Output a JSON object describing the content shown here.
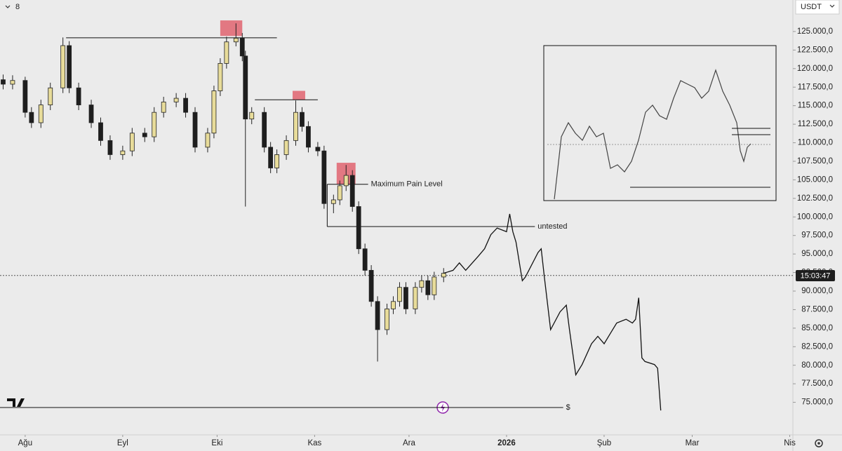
{
  "header": {
    "interval": "8",
    "currency": "USDT",
    "clock": "15:03:47"
  },
  "chart_data": {
    "type": "candlestick",
    "xlim": [
      -8,
      244
    ],
    "ylim": [
      70800,
      129250
    ],
    "xticks": [
      {
        "value": 0,
        "label": "Ağu"
      },
      {
        "value": 31,
        "label": "Eyl"
      },
      {
        "value": 61,
        "label": "Eki"
      },
      {
        "value": 92,
        "label": "Kas"
      },
      {
        "value": 122,
        "label": "Ara"
      },
      {
        "value": 153,
        "label": "2026"
      },
      {
        "value": 184,
        "label": "Şub"
      },
      {
        "value": 212,
        "label": "Mar"
      },
      {
        "value": 243,
        "label": "Nis"
      }
    ],
    "yticks": [
      {
        "value": 75000,
        "label": "75.000,0"
      },
      {
        "value": 77500,
        "label": "77.500,0"
      },
      {
        "value": 80000,
        "label": "80.000,0"
      },
      {
        "value": 82500,
        "label": "82.500,0"
      },
      {
        "value": 85000,
        "label": "85.000,0"
      },
      {
        "value": 87500,
        "label": "87.500,0"
      },
      {
        "value": 90000,
        "label": "90.000,0"
      },
      {
        "value": 92500,
        "label": "92.500,0"
      },
      {
        "value": 95000,
        "label": "95.000,0"
      },
      {
        "value": 97500,
        "label": "97.500,0"
      },
      {
        "value": 100000,
        "label": "100.000,0"
      },
      {
        "value": 102500,
        "label": "102.500,0"
      },
      {
        "value": 105000,
        "label": "105.000,0"
      },
      {
        "value": 107500,
        "label": "107.500,0"
      },
      {
        "value": 110000,
        "label": "110.000,0"
      },
      {
        "value": 112500,
        "label": "112.500,0"
      },
      {
        "value": 115000,
        "label": "115.000,0"
      },
      {
        "value": 117500,
        "label": "117.500,0"
      },
      {
        "value": 120000,
        "label": "120.000,0"
      },
      {
        "value": 122500,
        "label": "122.500,0"
      },
      {
        "value": 125000,
        "label": "125.000,0"
      }
    ],
    "up_color": "#e8dc9a",
    "down_color": "#1e1e1e",
    "x": [
      -7,
      -4,
      0,
      2,
      5,
      8,
      12,
      14,
      17,
      21,
      24,
      27,
      31,
      34,
      38,
      41,
      44,
      48,
      51,
      54,
      58,
      60,
      62,
      64,
      67,
      69,
      70,
      72,
      76,
      78,
      80,
      83,
      86,
      88,
      90,
      93,
      95,
      98,
      100,
      102,
      104,
      106,
      108,
      110,
      112,
      115,
      117,
      119,
      121,
      124,
      126,
      128,
      130,
      133
    ],
    "open": [
      118500,
      117900,
      118400,
      114100,
      112700,
      115100,
      117400,
      123100,
      117400,
      115100,
      112700,
      110300,
      108400,
      108900,
      111300,
      110800,
      114100,
      115500,
      116000,
      114100,
      109400,
      111300,
      117000,
      120700,
      123600,
      124100,
      121700,
      113200,
      114100,
      109400,
      106600,
      108400,
      110300,
      114100,
      112200,
      109400,
      108900,
      101800,
      102300,
      104200,
      105600,
      101400,
      95700,
      92800,
      88600,
      84800,
      87600,
      88600,
      90500,
      87600,
      90500,
      91400,
      89500,
      91900
    ],
    "high": [
      119200,
      119100,
      118900,
      114800,
      115800,
      118100,
      124200,
      123700,
      118100,
      115800,
      113400,
      111000,
      109600,
      112000,
      112000,
      114800,
      116200,
      116700,
      116700,
      114800,
      112000,
      117700,
      121400,
      124300,
      126100,
      124800,
      122400,
      114800,
      114800,
      110100,
      109100,
      111000,
      115700,
      114800,
      112900,
      110100,
      109600,
      103000,
      104900,
      107000,
      106300,
      102100,
      96400,
      93500,
      89300,
      88300,
      89300,
      91200,
      91200,
      91200,
      92100,
      92100,
      92600,
      93100
    ],
    "low": [
      117200,
      117200,
      113400,
      112000,
      112000,
      114400,
      116700,
      116700,
      114400,
      112000,
      109600,
      107700,
      107700,
      108200,
      110100,
      110100,
      113400,
      114800,
      113400,
      108700,
      108700,
      110600,
      116300,
      120000,
      123000,
      121000,
      101400,
      112500,
      108700,
      105900,
      105900,
      107700,
      109600,
      111500,
      108700,
      108200,
      101100,
      100500,
      101600,
      103500,
      100700,
      95000,
      92100,
      87900,
      80500,
      84100,
      86900,
      87900,
      86900,
      86900,
      89800,
      88800,
      88800,
      91200
    ],
    "close": [
      117900,
      118400,
      114100,
      112700,
      115100,
      117400,
      123100,
      117400,
      115100,
      112700,
      110300,
      108400,
      108900,
      111300,
      110800,
      114100,
      115500,
      116000,
      114100,
      109400,
      111300,
      117000,
      120700,
      123600,
      124100,
      121700,
      113200,
      114100,
      109400,
      106600,
      108400,
      110300,
      114100,
      112200,
      109400,
      108900,
      101800,
      102300,
      104200,
      105600,
      101400,
      95700,
      92800,
      88600,
      84800,
      87600,
      88600,
      90500,
      87600,
      90500,
      91400,
      89500,
      91900,
      92400
    ],
    "projection": {
      "color": "#111111",
      "x": [
        133,
        136,
        138,
        140,
        144,
        146,
        148,
        150,
        153,
        154,
        155,
        156,
        158,
        159,
        163,
        164,
        165,
        167,
        170,
        172,
        173,
        175,
        177,
        180,
        182,
        184,
        186,
        188,
        191,
        193,
        194,
        195,
        196,
        197,
        200,
        201,
        202
      ],
      "values": [
        92400,
        92800,
        93800,
        92800,
        94700,
        95700,
        97600,
        98500,
        98000,
        100400,
        98000,
        96600,
        91400,
        91900,
        95200,
        95700,
        91900,
        84800,
        87200,
        88100,
        84800,
        78700,
        80100,
        82900,
        83900,
        82900,
        84300,
        85700,
        86200,
        85700,
        86200,
        89100,
        81000,
        80500,
        80100,
        79600,
        73900
      ]
    },
    "current_price": 92100,
    "levels": [
      {
        "value": 124150,
        "x": [
          13,
          80
        ]
      },
      {
        "value": 115800,
        "x": [
          73,
          93
        ]
      },
      {
        "value": 104400,
        "x": [
          96,
          109
        ],
        "label": "Maximum Pain Level"
      },
      {
        "value": 98700,
        "x": [
          96,
          162
        ],
        "label": "untested"
      },
      {
        "value": 74300,
        "x": [
          -8,
          171
        ],
        "label": "$"
      }
    ],
    "zones_color": "#e06470",
    "zones": [
      {
        "x": [
          62,
          69
        ],
        "y": [
          124400,
          126500
        ]
      },
      {
        "x": [
          85,
          89
        ],
        "y": [
          115800,
          117000
        ]
      },
      {
        "x": [
          99,
          105
        ],
        "y": [
          104400,
          107300
        ]
      }
    ]
  }
}
